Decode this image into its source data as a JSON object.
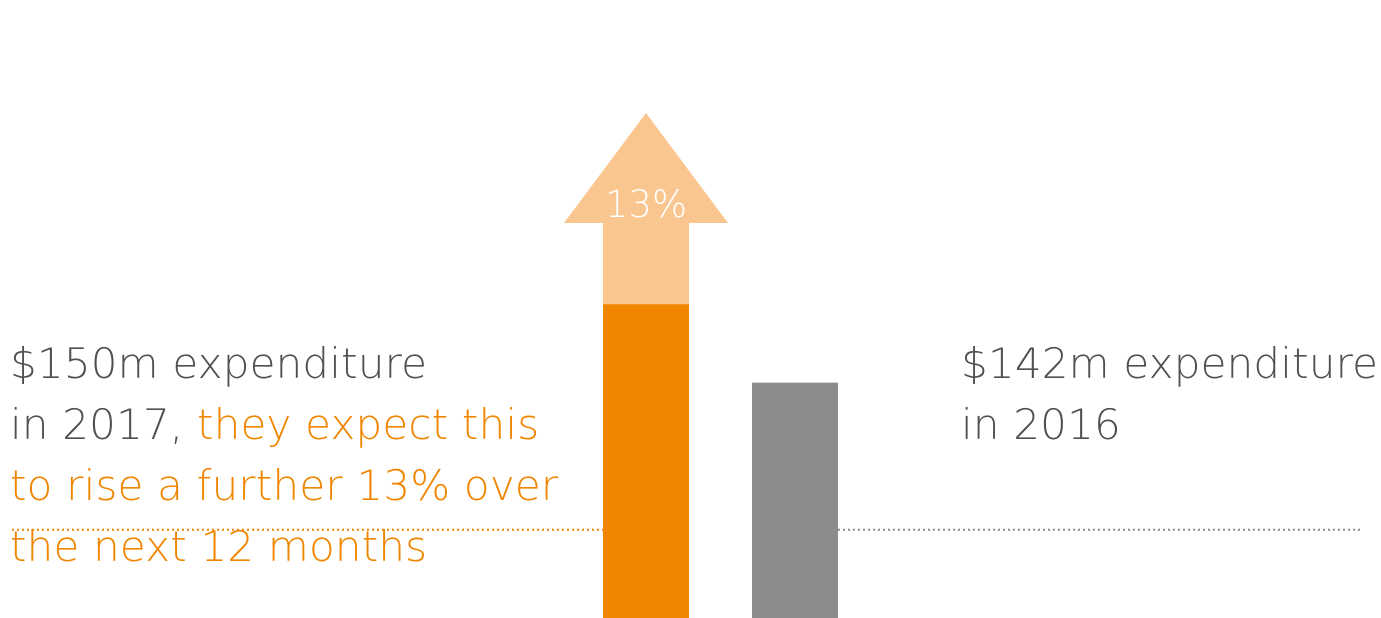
{
  "chart_data": {
    "type": "bar",
    "title": "",
    "xlabel": "",
    "ylabel": "",
    "unit": "$m",
    "categories": [
      "2017",
      "2016"
    ],
    "values": [
      150,
      142
    ],
    "projected_increase_percent": 13,
    "projected_value": 169.5,
    "arrow_label": "13%",
    "reference_line": 127,
    "ylim": [
      118,
      180
    ],
    "grid": false,
    "legend": "none",
    "annotations": [
      {
        "series": "2017",
        "lines": [
          [
            {
              "text": "$150m expenditure",
              "highlight": false
            }
          ],
          [
            {
              "text": "in 2017, ",
              "highlight": false
            },
            {
              "text": "they expect this",
              "highlight": true
            }
          ],
          [
            {
              "text": "to rise a further 13% over",
              "highlight": true
            }
          ],
          [
            {
              "text": "the next 12 months",
              "highlight": true
            }
          ]
        ]
      },
      {
        "series": "2016",
        "lines": [
          [
            {
              "text": "$142m expenditure",
              "highlight": false
            }
          ],
          [
            {
              "text": "in 2016",
              "highlight": false
            }
          ]
        ]
      }
    ]
  },
  "colors": {
    "bar_2017": "#f08500",
    "bar_2016": "#8c8c8b",
    "projection_arrow": "#fac690",
    "arrow_label": "#ffffff",
    "text_default": "#505050",
    "text_highlight": "#f08500",
    "reference_line_left": "#f08500",
    "reference_line_right": "#8c8c8b"
  }
}
